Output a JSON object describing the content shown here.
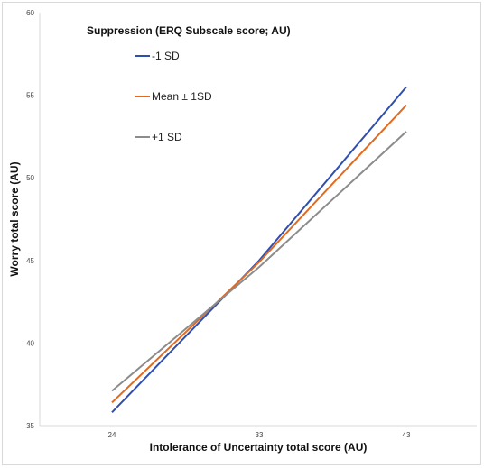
{
  "chart_data": {
    "type": "line",
    "title": "",
    "xlabel": "Intolerance of Uncertainty total score (AU)",
    "ylabel": "Worry total score (AU)",
    "legend_title": "Suppression (ERQ Subscale score; AU)",
    "legend_position": "top-left",
    "grid": false,
    "x": [
      24,
      33,
      43
    ],
    "ylim": [
      35,
      60
    ],
    "yticks": [
      35,
      40,
      45,
      50,
      55,
      60
    ],
    "xticks": [
      24,
      33,
      43
    ],
    "series": [
      {
        "name": "-1 SD",
        "color": "#2f4fb0",
        "values": [
          35.8,
          45.0,
          55.5
        ]
      },
      {
        "name": "Mean ± 1SD",
        "color": "#e26a1f",
        "values": [
          36.4,
          44.9,
          54.4
        ]
      },
      {
        "name": "+1 SD",
        "color": "#8c8c8c",
        "values": [
          37.1,
          44.6,
          52.8
        ]
      }
    ]
  }
}
